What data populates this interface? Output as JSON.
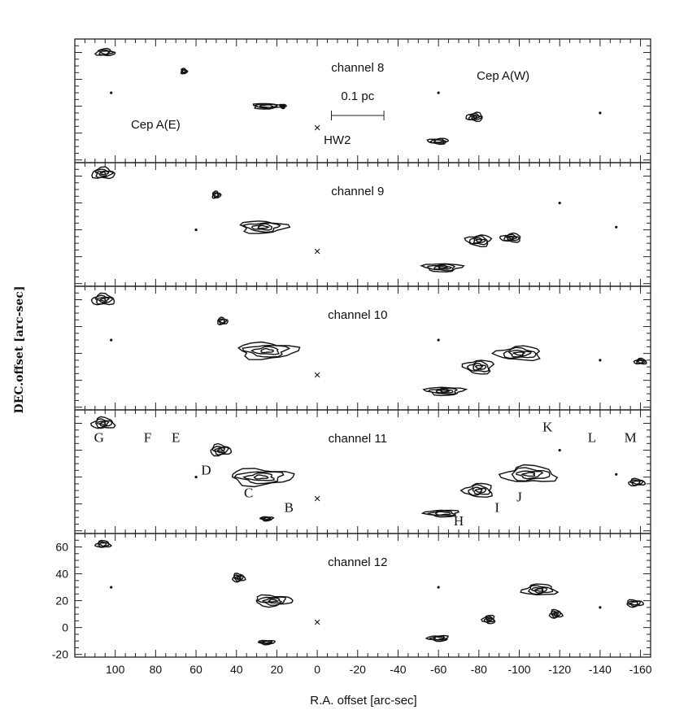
{
  "chart_data": {
    "type": "contour",
    "xlabel": "R.A. offset [arc-sec]",
    "ylabel": "DEC.offset [arc-sec]",
    "xlim": [
      120,
      -165
    ],
    "ylim": [
      -22,
      70
    ],
    "x_ticks": [
      100,
      80,
      60,
      40,
      20,
      0,
      -20,
      -40,
      -60,
      -80,
      -100,
      -120,
      -140,
      -160
    ],
    "x_tick_labels": [
      "100",
      "80",
      "60",
      "40",
      "20",
      "0",
      "-20",
      "-40",
      "-60",
      "-80",
      "-100",
      "-120",
      "-140",
      "-160"
    ],
    "y_ticks": [
      60,
      40,
      20,
      0,
      -20
    ],
    "y_tick_labels": [
      "60",
      "40",
      "20",
      "0",
      "-20"
    ],
    "reference_source": {
      "name": "HW2",
      "x": 0,
      "y": 4
    },
    "panels": [
      {
        "title": "channel 8",
        "annotations": {
          "cep_a_e": "Cep A(E)",
          "cep_a_w": "Cep A(W)",
          "scale_bar": "0.1 pc",
          "hw2": "HW2"
        },
        "blobs": [
          {
            "x": 105,
            "y": 60,
            "w": 9,
            "h": 5
          },
          {
            "x": 66,
            "y": 46,
            "w": 3,
            "h": 4
          },
          {
            "x": 25,
            "y": 20,
            "w": 14,
            "h": 4
          },
          {
            "x": 17,
            "y": 20,
            "w": 3,
            "h": 3
          },
          {
            "x": -60,
            "y": -6,
            "w": 10,
            "h": 4
          },
          {
            "x": -78,
            "y": 12,
            "w": 8,
            "h": 6
          }
        ]
      },
      {
        "title": "channel 9",
        "blobs": [
          {
            "x": 106,
            "y": 62,
            "w": 11,
            "h": 8
          },
          {
            "x": 50,
            "y": 46,
            "w": 4,
            "h": 5
          },
          {
            "x": 27,
            "y": 22,
            "w": 22,
            "h": 9
          },
          {
            "x": -62,
            "y": -8,
            "w": 18,
            "h": 6
          },
          {
            "x": -80,
            "y": 12,
            "w": 12,
            "h": 8
          },
          {
            "x": -96,
            "y": 14,
            "w": 10,
            "h": 6
          }
        ]
      },
      {
        "title": "channel 10",
        "blobs": [
          {
            "x": 106,
            "y": 60,
            "w": 11,
            "h": 8
          },
          {
            "x": 47,
            "y": 44,
            "w": 5,
            "h": 5
          },
          {
            "x": 25,
            "y": 22,
            "w": 28,
            "h": 12
          },
          {
            "x": -63,
            "y": -8,
            "w": 18,
            "h": 6
          },
          {
            "x": -80,
            "y": 10,
            "w": 14,
            "h": 10
          },
          {
            "x": -100,
            "y": 20,
            "w": 22,
            "h": 10
          },
          {
            "x": -160,
            "y": 14,
            "w": 6,
            "h": 4
          }
        ]
      },
      {
        "title": "channel 11",
        "blobs": [
          {
            "x": 106,
            "y": 60,
            "w": 11,
            "h": 8
          },
          {
            "x": 48,
            "y": 40,
            "w": 10,
            "h": 8
          },
          {
            "x": 28,
            "y": 20,
            "w": 30,
            "h": 12
          },
          {
            "x": 25,
            "y": -11,
            "w": 6,
            "h": 3
          },
          {
            "x": -62,
            "y": -7,
            "w": 16,
            "h": 5
          },
          {
            "x": -80,
            "y": 10,
            "w": 14,
            "h": 10
          },
          {
            "x": -105,
            "y": 22,
            "w": 26,
            "h": 12
          },
          {
            "x": -158,
            "y": 16,
            "w": 8,
            "h": 5
          }
        ],
        "labels": [
          {
            "text": "G",
            "x": 108,
            "y": 46
          },
          {
            "text": "F",
            "x": 84,
            "y": 46
          },
          {
            "text": "E",
            "x": 70,
            "y": 46
          },
          {
            "text": "D",
            "x": 55,
            "y": 22
          },
          {
            "text": "C",
            "x": 34,
            "y": 5
          },
          {
            "text": "B",
            "x": 14,
            "y": -6
          },
          {
            "text": "H",
            "x": -70,
            "y": -16
          },
          {
            "text": "I",
            "x": -89,
            "y": -6
          },
          {
            "text": "J",
            "x": -100,
            "y": 2
          },
          {
            "text": "K",
            "x": -114,
            "y": 54
          },
          {
            "text": "L",
            "x": -136,
            "y": 46
          },
          {
            "text": "M",
            "x": -155,
            "y": 46
          }
        ]
      },
      {
        "title": "channel 12",
        "blobs": [
          {
            "x": 106,
            "y": 62,
            "w": 7,
            "h": 5
          },
          {
            "x": 39,
            "y": 37,
            "w": 6,
            "h": 6
          },
          {
            "x": 22,
            "y": 20,
            "w": 18,
            "h": 8
          },
          {
            "x": 25,
            "y": -11,
            "w": 8,
            "h": 3
          },
          {
            "x": -60,
            "y": -8,
            "w": 10,
            "h": 4
          },
          {
            "x": -85,
            "y": 6,
            "w": 6,
            "h": 6
          },
          {
            "x": -110,
            "y": 28,
            "w": 16,
            "h": 8
          },
          {
            "x": -118,
            "y": 10,
            "w": 6,
            "h": 6
          },
          {
            "x": -157,
            "y": 18,
            "w": 8,
            "h": 5
          }
        ]
      }
    ]
  }
}
